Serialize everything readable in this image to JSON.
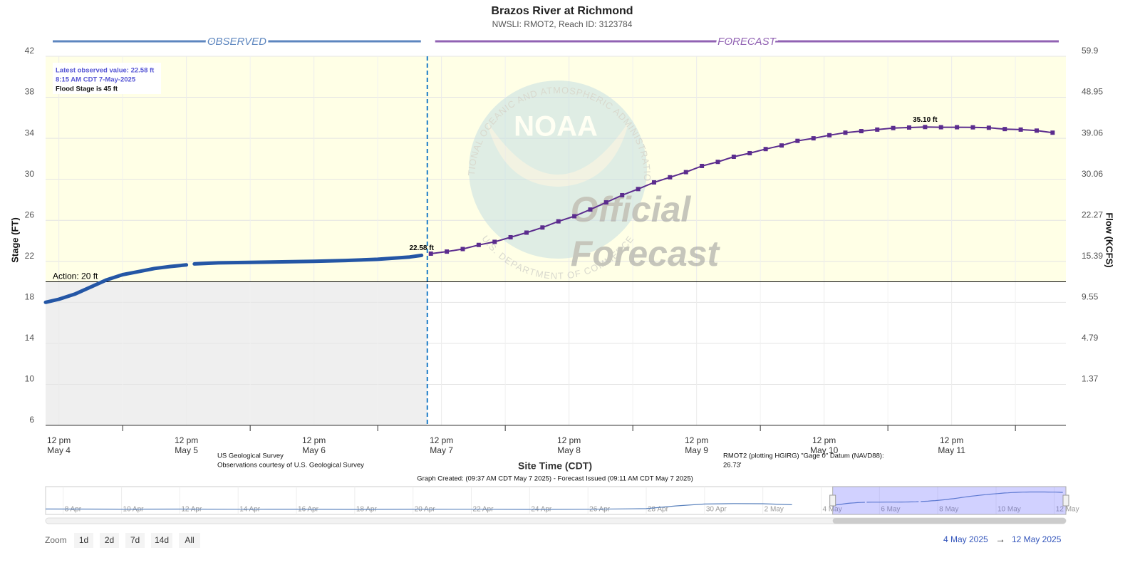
{
  "header": {
    "title": "Brazos River at Richmond",
    "subtitle": "NWSLI: RMOT2, Reach ID: 3123784"
  },
  "chart_data": {
    "type": "line",
    "xlim": [
      "2025-05-04T09:30",
      "2025-05-12T09:30"
    ],
    "xticks": [
      {
        "value": "2025-05-04T12:00",
        "label": [
          "12 pm",
          "May 4"
        ]
      },
      {
        "value": "2025-05-05T12:00",
        "label": [
          "12 pm",
          "May 5"
        ]
      },
      {
        "value": "2025-05-06T12:00",
        "label": [
          "12 pm",
          "May 6"
        ]
      },
      {
        "value": "2025-05-07T12:00",
        "label": [
          "12 pm",
          "May 7"
        ]
      },
      {
        "value": "2025-05-08T12:00",
        "label": [
          "12 pm",
          "May 8"
        ]
      },
      {
        "value": "2025-05-09T12:00",
        "label": [
          "12 pm",
          "May 9"
        ]
      },
      {
        "value": "2025-05-10T12:00",
        "label": [
          "12 pm",
          "May 10"
        ]
      },
      {
        "value": "2025-05-11T12:00",
        "label": [
          "12 pm",
          "May 11"
        ]
      }
    ],
    "xminor": [
      "2025-05-05T00:00",
      "2025-05-06T00:00",
      "2025-05-07T00:00",
      "2025-05-08T00:00",
      "2025-05-09T00:00",
      "2025-05-10T00:00",
      "2025-05-11T00:00",
      "2025-05-12T00:00"
    ],
    "ylim": [
      6,
      42
    ],
    "yticks": [
      6,
      10,
      14,
      18,
      22,
      26,
      30,
      34,
      38,
      42
    ],
    "y2ticks": [
      {
        "stage": 42,
        "flow": 59.9
      },
      {
        "stage": 38,
        "flow": 48.95
      },
      {
        "stage": 34,
        "flow": 39.06
      },
      {
        "stage": 30,
        "flow": 30.06
      },
      {
        "stage": 26,
        "flow": 22.27
      },
      {
        "stage": 22,
        "flow": 15.39
      },
      {
        "stage": 18,
        "flow": 9.55
      },
      {
        "stage": 14,
        "flow": 4.79
      },
      {
        "stage": 10,
        "flow": 1.37
      }
    ],
    "ylabel": "Stage (FT)",
    "y2label": "Flow (KCFS)",
    "xlabel": "Site Time (CDT)",
    "grid": true,
    "observed_label": "OBSERVED",
    "forecast_label": "FORECAST",
    "current_time": "2025-05-07T09:20",
    "action": {
      "value": 20,
      "label": "Action: 20 ft"
    },
    "info": [
      "Latest observed value: 22.58 ft",
      "8:15 AM CDT 7-May-2025",
      "Flood Stage is 45 ft"
    ],
    "series": [
      {
        "color": "#2456a5",
        "x": [
          "2025-05-04T09:30",
          "2025-05-04T12:00",
          "2025-05-04T15:00",
          "2025-05-04T18:00",
          "2025-05-04T21:00",
          "2025-05-05T00:00",
          "2025-05-05T03:00",
          "2025-05-05T06:00",
          "2025-05-05T09:00",
          "2025-05-05T12:00",
          "2025-05-05T12:45",
          "2025-05-05T13:30",
          "2025-05-05T18:00",
          "2025-05-06T00:00",
          "2025-05-06T06:00",
          "2025-05-06T12:00",
          "2025-05-06T18:00",
          "2025-05-07T00:00",
          "2025-05-07T06:00",
          "2025-05-07T08:15"
        ],
        "values": [
          18.0,
          18.3,
          18.8,
          19.5,
          20.2,
          20.7,
          21.0,
          21.3,
          21.5,
          21.65,
          null,
          21.75,
          21.85,
          21.9,
          21.95,
          22.0,
          22.08,
          22.2,
          22.42,
          22.58
        ]
      },
      {
        "color": "#5b2c8e",
        "x": [
          "2025-05-07T10:00",
          "2025-05-07T13:00",
          "2025-05-07T16:00",
          "2025-05-07T19:00",
          "2025-05-07T22:00",
          "2025-05-08T01:00",
          "2025-05-08T04:00",
          "2025-05-08T07:00",
          "2025-05-08T10:00",
          "2025-05-08T13:00",
          "2025-05-08T16:00",
          "2025-05-08T19:00",
          "2025-05-08T22:00",
          "2025-05-09T01:00",
          "2025-05-09T04:00",
          "2025-05-09T07:00",
          "2025-05-09T10:00",
          "2025-05-09T13:00",
          "2025-05-09T16:00",
          "2025-05-09T19:00",
          "2025-05-09T22:00",
          "2025-05-10T01:00",
          "2025-05-10T04:00",
          "2025-05-10T07:00",
          "2025-05-10T10:00",
          "2025-05-10T13:00",
          "2025-05-10T16:00",
          "2025-05-10T19:00",
          "2025-05-10T22:00",
          "2025-05-11T01:00",
          "2025-05-11T04:00",
          "2025-05-11T07:00",
          "2025-05-11T10:00",
          "2025-05-11T13:00",
          "2025-05-11T16:00",
          "2025-05-11T19:00",
          "2025-05-11T22:00",
          "2025-05-12T01:00",
          "2025-05-12T04:00",
          "2025-05-12T07:00"
        ],
        "values": [
          22.75,
          22.95,
          23.2,
          23.6,
          23.9,
          24.35,
          24.8,
          25.3,
          25.9,
          26.4,
          27.05,
          27.75,
          28.45,
          29.05,
          29.7,
          30.2,
          30.7,
          31.3,
          31.7,
          32.2,
          32.55,
          32.95,
          33.3,
          33.75,
          34.0,
          34.3,
          34.55,
          34.7,
          34.85,
          35.0,
          35.05,
          35.1,
          35.08,
          35.08,
          35.07,
          35.03,
          34.9,
          34.85,
          34.75,
          34.55
        ]
      }
    ],
    "annotations": [
      {
        "text": "22.58 ft",
        "x": "2025-05-07T08:15",
        "y": 22.58
      },
      {
        "text": "35.10 ft",
        "x": "2025-05-11T07:00",
        "y": 35.1
      }
    ]
  },
  "watermark": {
    "logo": "NOAA",
    "ring_top": "NATIONAL OCEANIC AND ATMOSPHERIC ADMINISTRATION",
    "ring_bottom": "U.S. DEPARTMENT OF COMMERCE",
    "lines": [
      "Official",
      "Forecast"
    ]
  },
  "credits": [
    "US Geological Survey",
    "Observations courtesy of U.S. Geological Survey"
  ],
  "datum": [
    "RMOT2 (plotting HGIRG) \"Gage 0\" Datum (NAVD88):",
    "26.73'"
  ],
  "created": "Graph Created: (09:37 AM CDT May 7 2025) - Forecast Issued (09:11 AM CDT May 7 2025)",
  "navigator": {
    "xlim": [
      "2025-04-07T09:30",
      "2025-05-12T09:30"
    ],
    "selected": [
      "2025-05-04T09:30",
      "2025-05-12T09:30"
    ],
    "ticks": [
      {
        "value": "2025-04-08",
        "label": "8 Apr"
      },
      {
        "value": "2025-04-10",
        "label": "10 Apr"
      },
      {
        "value": "2025-04-12",
        "label": "12 Apr"
      },
      {
        "value": "2025-04-14",
        "label": "14 Apr"
      },
      {
        "value": "2025-04-16",
        "label": "16 Apr"
      },
      {
        "value": "2025-04-18",
        "label": "18 Apr"
      },
      {
        "value": "2025-04-20",
        "label": "20 Apr"
      },
      {
        "value": "2025-04-22",
        "label": "22 Apr"
      },
      {
        "value": "2025-04-24",
        "label": "24 Apr"
      },
      {
        "value": "2025-04-26",
        "label": "26 Apr"
      },
      {
        "value": "2025-04-28",
        "label": "28 Apr"
      },
      {
        "value": "2025-04-30",
        "label": "30 Apr"
      },
      {
        "value": "2025-05-02",
        "label": "2 May"
      },
      {
        "value": "2025-05-04",
        "label": "4 May"
      },
      {
        "value": "2025-05-06",
        "label": "6 May"
      },
      {
        "value": "2025-05-08",
        "label": "8 May"
      },
      {
        "value": "2025-05-10",
        "label": "10 May"
      },
      {
        "value": "2025-05-12",
        "label": "12 May"
      }
    ],
    "history": {
      "x": [
        "2025-04-07T09:30",
        "2025-04-10T00:00",
        "2025-04-12T00:00",
        "2025-04-14T00:00",
        "2025-04-16T00:00",
        "2025-04-18T00:00",
        "2025-04-20T00:00",
        "2025-04-22T00:00",
        "2025-04-24T00:00",
        "2025-04-26T00:00",
        "2025-04-28T00:00",
        "2025-04-29T00:00",
        "2025-04-30T00:00",
        "2025-05-01T00:00",
        "2025-05-02T00:00",
        "2025-05-03T00:00"
      ],
      "values": [
        13.0,
        12.8,
        12.9,
        12.7,
        12.8,
        12.6,
        12.8,
        12.7,
        12.6,
        12.7,
        13.5,
        17.0,
        19.5,
        20.0,
        19.8,
        18.6
      ]
    }
  },
  "zoom": {
    "label": "Zoom",
    "buttons": [
      "1d",
      "2d",
      "7d",
      "14d",
      "All"
    ]
  },
  "range": {
    "from": "4 May 2025",
    "arrow": "→",
    "to": "12 May 2025"
  }
}
